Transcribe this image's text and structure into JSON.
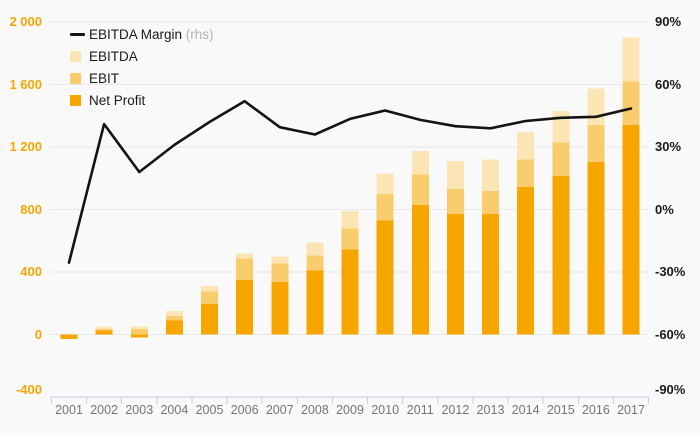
{
  "legend": {
    "items": [
      {
        "label": "EBITDA Margin",
        "suffix": " (rhs)",
        "swatch": "line",
        "color": "#141414"
      },
      {
        "label": "EBITDA",
        "suffix": "",
        "swatch": "square",
        "color": "#fbe5b5"
      },
      {
        "label": "EBIT",
        "suffix": "",
        "swatch": "square",
        "color": "#f9cd6d"
      },
      {
        "label": "Net Profit",
        "suffix": "",
        "swatch": "square",
        "color": "#f7a600"
      }
    ]
  },
  "chart_data": {
    "type": "combo-bar-line",
    "x": [
      2001,
      2002,
      2003,
      2004,
      2005,
      2006,
      2007,
      2008,
      2009,
      2010,
      2011,
      2012,
      2013,
      2014,
      2015,
      2016,
      2017
    ],
    "bar_series": [
      {
        "name": "EBITDA",
        "color": "#fbe5b5",
        "values": [
          -25,
          50,
          50,
          150,
          310,
          520,
          500,
          590,
          790,
          1030,
          1175,
          1110,
          1120,
          1295,
          1430,
          1575,
          1900
        ]
      },
      {
        "name": "EBIT",
        "color": "#f9cd6d",
        "values": [
          -28,
          35,
          35,
          120,
          275,
          485,
          455,
          505,
          680,
          900,
          1025,
          930,
          920,
          1120,
          1230,
          1340,
          1620
        ]
      },
      {
        "name": "Net Profit",
        "color": "#f7a600",
        "values": [
          -30,
          25,
          -20,
          90,
          195,
          350,
          335,
          410,
          545,
          730,
          830,
          770,
          770,
          945,
          1015,
          1105,
          1340
        ]
      }
    ],
    "line_series": {
      "name": "EBITDA Margin (rhs)",
      "axis": "right",
      "color": "#141414",
      "values": [
        -25.5,
        41,
        18,
        31,
        42,
        52,
        39.5,
        36,
        43.5,
        47.5,
        43,
        40,
        39,
        42.5,
        44,
        44.5,
        48.5
      ]
    },
    "left_axis": {
      "range": [
        -400,
        2000
      ],
      "ticks": [
        2000,
        1600,
        1200,
        800,
        400,
        0,
        -400
      ],
      "labels": [
        "2 000",
        "1 600",
        "1 200",
        "800",
        "400",
        "0",
        "-400"
      ]
    },
    "right_axis": {
      "range": [
        -90,
        90
      ],
      "ticks": [
        90,
        60,
        30,
        0,
        -30,
        -60,
        -90
      ],
      "labels": [
        "90%",
        "60%",
        "30%",
        "0%",
        "-30%",
        "-60%",
        "-90%"
      ]
    },
    "grid": true,
    "legend_position": "top-left",
    "colors": {
      "grid": "#e8e8e8",
      "axis": "#c5cde7",
      "background": "#f9f9f9"
    }
  }
}
